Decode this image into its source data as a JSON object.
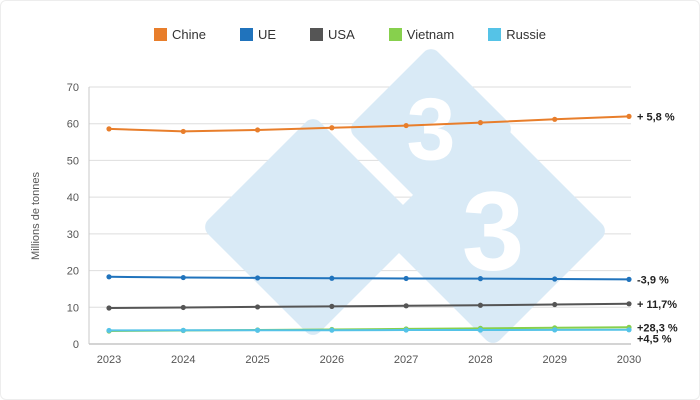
{
  "chart_data": {
    "type": "line",
    "x": [
      "2023",
      "2024",
      "2025",
      "2026",
      "2027",
      "2028",
      "2029",
      "2030"
    ],
    "series": [
      {
        "name": "Chine",
        "color": "#E87E2B",
        "values": [
          58.6,
          57.9,
          58.3,
          58.9,
          59.5,
          60.3,
          61.2,
          62.0
        ],
        "end_label": "+ 5,8 %"
      },
      {
        "name": "UE",
        "color": "#2073BC",
        "values": [
          18.3,
          18.1,
          18.0,
          17.9,
          17.85,
          17.8,
          17.7,
          17.6
        ],
        "end_label": "-3,9 %"
      },
      {
        "name": "USA",
        "color": "#555555",
        "values": [
          9.8,
          9.95,
          10.1,
          10.25,
          10.4,
          10.55,
          10.75,
          10.95
        ],
        "end_label": "+ 11,7%"
      },
      {
        "name": "Vietnam",
        "color": "#87D04D",
        "values": [
          3.54,
          3.68,
          3.82,
          3.96,
          4.1,
          4.25,
          4.4,
          4.54
        ],
        "end_label": "+28,3 %"
      },
      {
        "name": "Russie",
        "color": "#55C3E7",
        "values": [
          3.7,
          3.72,
          3.75,
          3.77,
          3.8,
          3.82,
          3.85,
          3.87
        ],
        "end_label": "+4,5 %"
      }
    ],
    "title": "",
    "xlabel": "",
    "ylabel": "Millions de tonnes",
    "ylim": [
      0,
      70
    ],
    "yticks": [
      0,
      10,
      20,
      30,
      40,
      50,
      60,
      70
    ],
    "grid": "horizontal",
    "legend_position": "top"
  },
  "watermark": {
    "text": "3",
    "diamond_color": "#D9EAF6",
    "text_color": "#ffffff"
  },
  "style": {
    "grid_color": "#dedede",
    "axis_color": "#c8c8c8",
    "baseline_color": "#a9a9a9",
    "tick_label_color": "#555555",
    "end_label_color": "#222222"
  }
}
